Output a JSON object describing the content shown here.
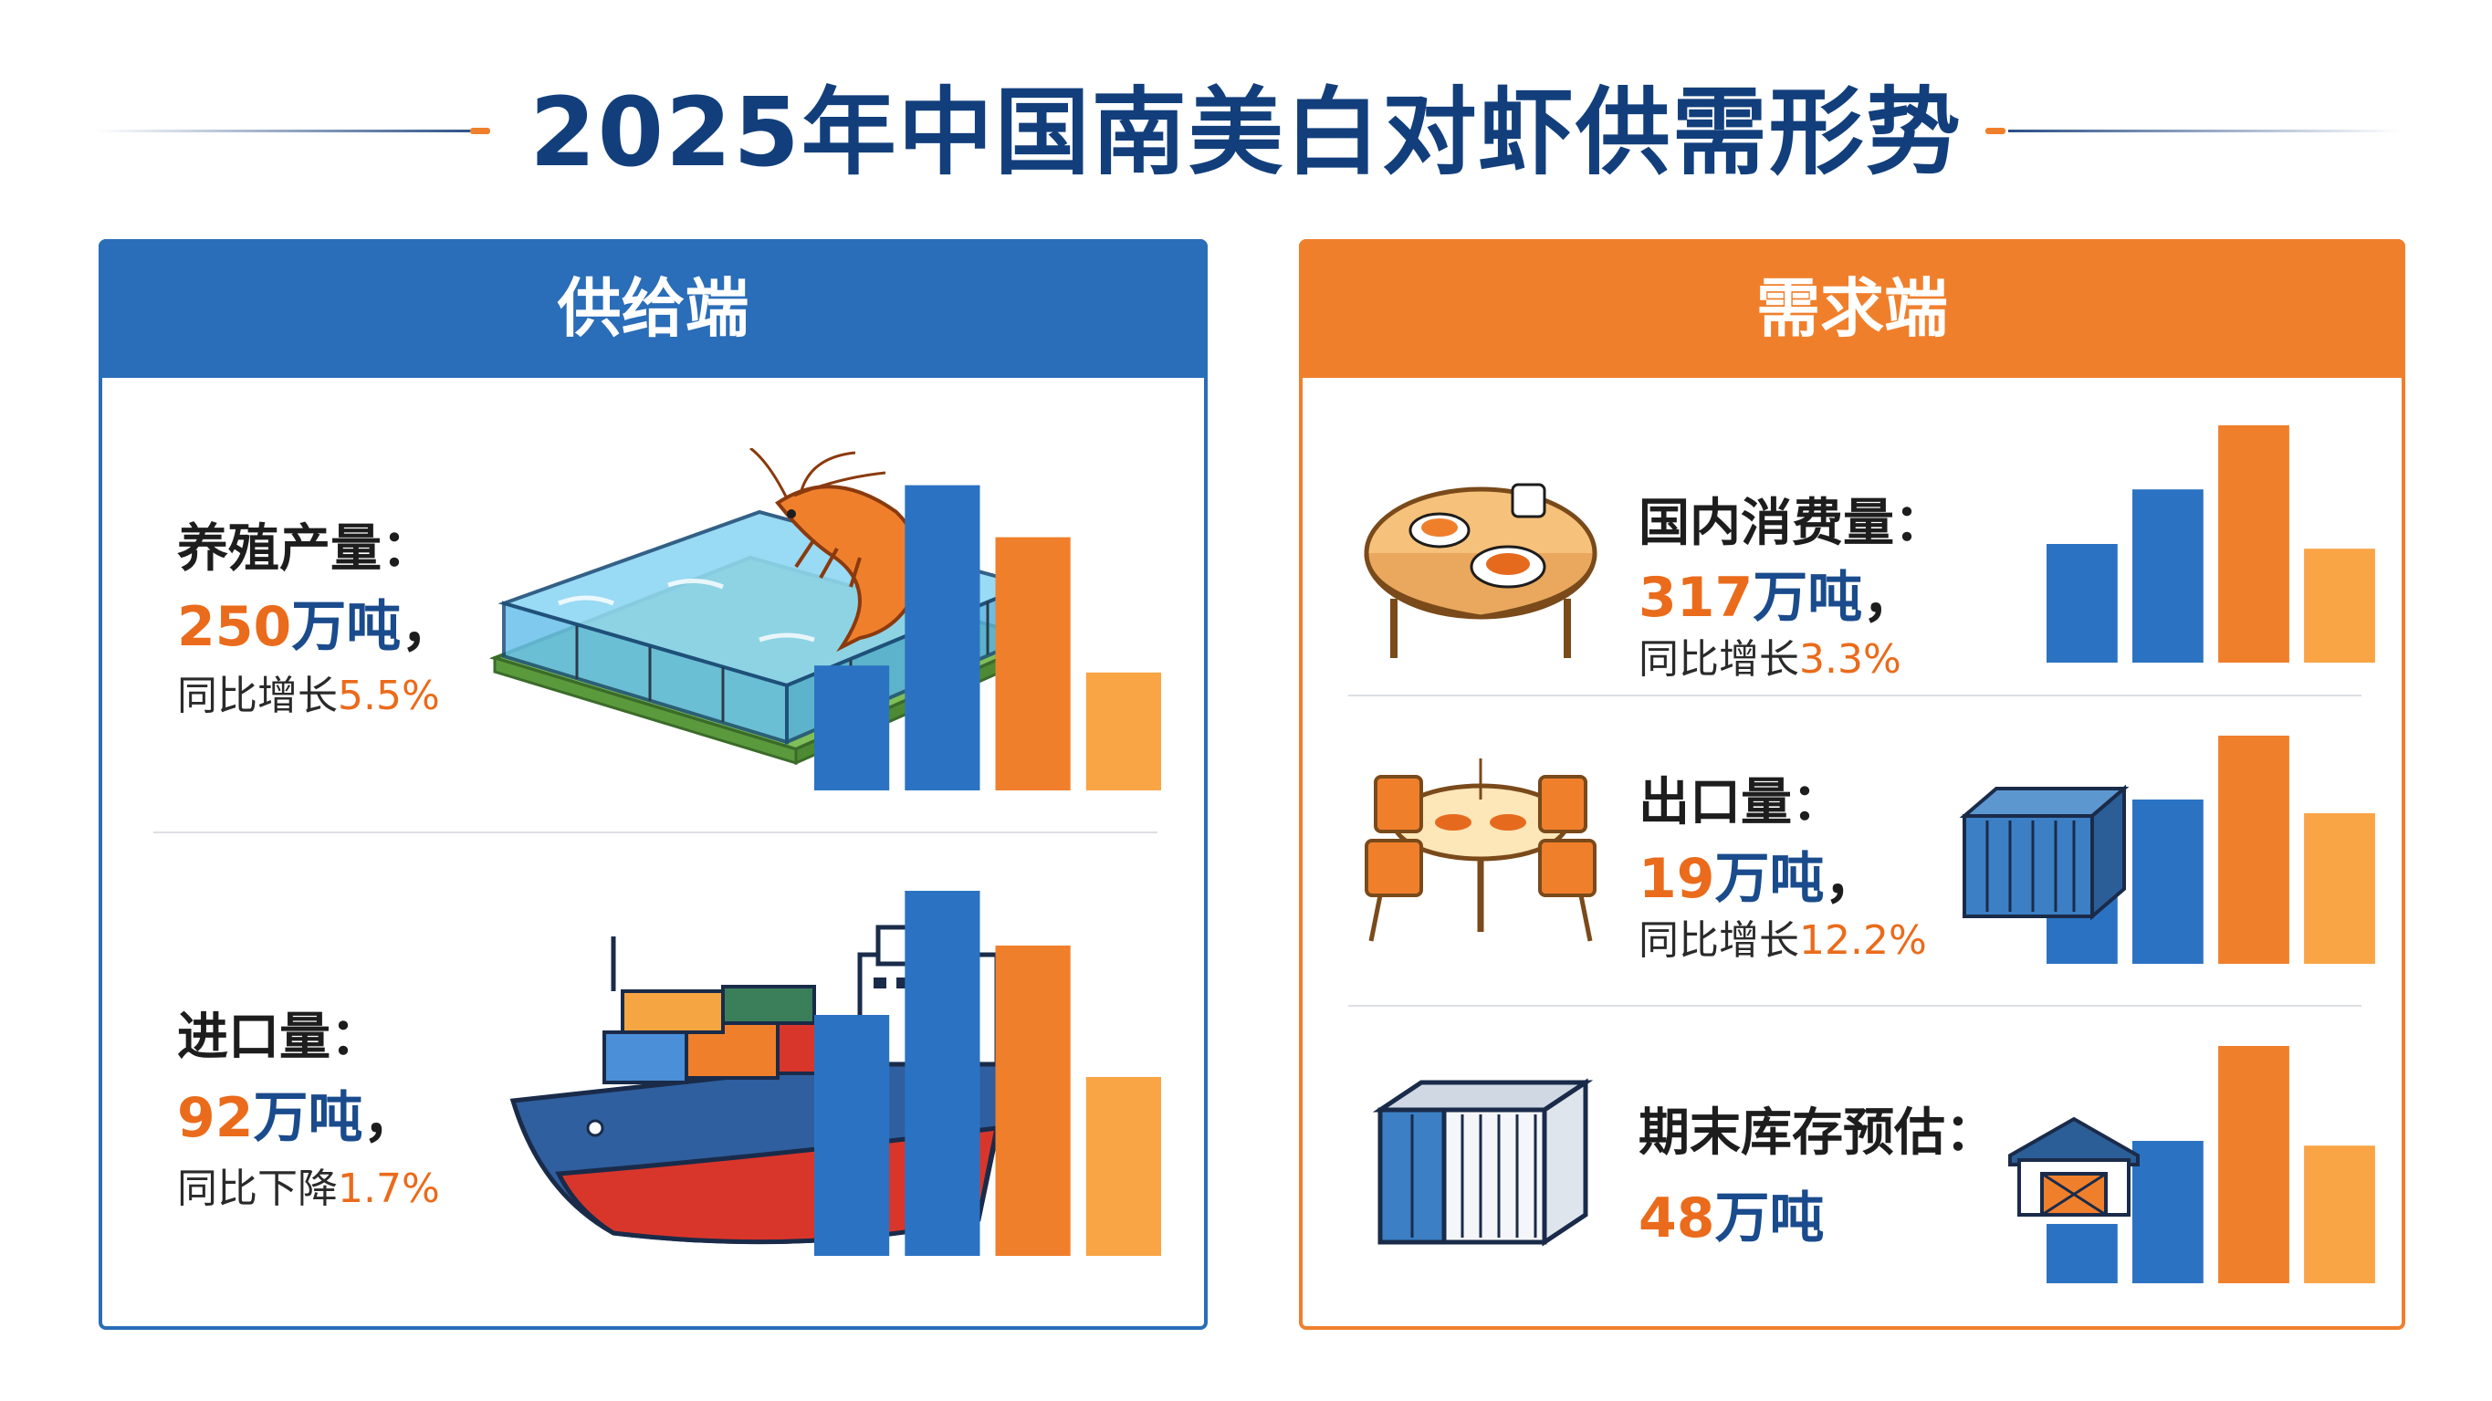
{
  "title": "2025年中国南美白对虾供需形势",
  "colors": {
    "supply_accent": "#2a6db8",
    "demand_accent": "#f07f2c",
    "title_color": "#123f7c",
    "value_orange": "#ea6b1b",
    "unit_blue": "#1a4b8c",
    "bar_colors": [
      "#2b73c2",
      "#2b73c2",
      "#f07f2c",
      "#f9a445"
    ]
  },
  "supply": {
    "header": "供给端",
    "items": [
      {
        "label": "养殖产量：",
        "value_num": "250",
        "value_unit": "万吨",
        "comma": "，",
        "change_text": "同比增长",
        "change_pct": "5.5%",
        "icon": "shrimp-pond-icon"
      },
      {
        "label": "进口量：",
        "value_num": "92",
        "value_unit": "万吨",
        "comma": "，",
        "change_text": "同比下降",
        "change_pct": "1.7%",
        "icon": "cargo-ship-icon"
      }
    ]
  },
  "demand": {
    "header": "需求端",
    "items": [
      {
        "label": "国内消费量：",
        "value_num": "317",
        "value_unit": "万吨",
        "comma": "，",
        "change_text": "同比增长",
        "change_pct": "3.3%",
        "icon": "dining-table-icon"
      },
      {
        "label": "出口量：",
        "value_num": "19",
        "value_unit": "万吨",
        "comma": "，",
        "change_text": "同比增长",
        "change_pct": "12.2%",
        "icon": "restaurant-table-icon"
      },
      {
        "label": "期末库存预估：",
        "value_num": "48",
        "value_unit": "万吨",
        "comma": "",
        "change_text": "",
        "change_pct": "",
        "icon": "storage-container-icon"
      }
    ]
  },
  "chart_data": [
    {
      "type": "bar",
      "series": [
        {
          "values": [
            0.36,
            0.88,
            0.73,
            0.34
          ]
        }
      ]
    },
    {
      "type": "bar",
      "series": [
        {
          "values": [
            0.66,
            1.0,
            0.85,
            0.49
          ]
        }
      ]
    },
    {
      "type": "bar",
      "series": [
        {
          "values": [
            0.5,
            0.73,
            1.0,
            0.48
          ]
        }
      ]
    },
    {
      "type": "bar",
      "series": [
        {
          "values": [
            0.38,
            0.72,
            1.0,
            0.66
          ]
        }
      ]
    },
    {
      "type": "bar",
      "series": [
        {
          "values": [
            0.25,
            0.6,
            1.0,
            0.58
          ]
        }
      ]
    }
  ]
}
